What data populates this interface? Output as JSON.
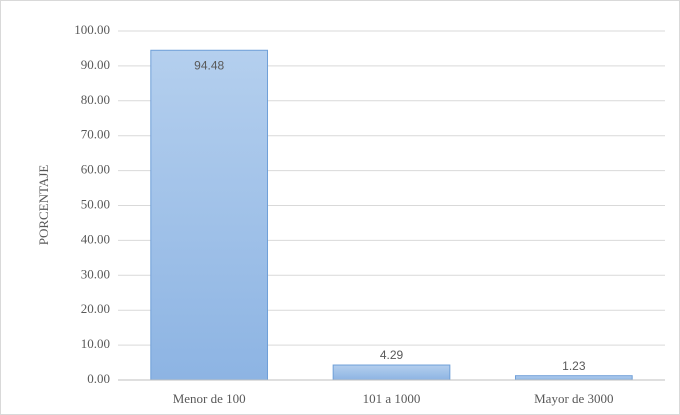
{
  "chart_data": {
    "type": "bar",
    "ylabel": "PORCENTAJE",
    "categories": [
      "Menor de 100",
      "101 a 1000",
      "Mayor de 3000"
    ],
    "values": [
      94.48,
      4.29,
      1.23
    ],
    "color": "#9dc0e8",
    "ylim": [
      0,
      100
    ],
    "yticks": [
      {
        "value": 0,
        "label": "0.00"
      },
      {
        "value": 10,
        "label": "10.00"
      },
      {
        "value": 20,
        "label": "20.00"
      },
      {
        "value": 30,
        "label": "30.00"
      },
      {
        "value": 40,
        "label": "40.00"
      },
      {
        "value": 50,
        "label": "50.00"
      },
      {
        "value": 60,
        "label": "60.00"
      },
      {
        "value": 70,
        "label": "70.00"
      },
      {
        "value": 80,
        "label": "80.00"
      },
      {
        "value": 90,
        "label": "90.00"
      },
      {
        "value": 100,
        "label": "100.00"
      }
    ],
    "grid": true
  }
}
